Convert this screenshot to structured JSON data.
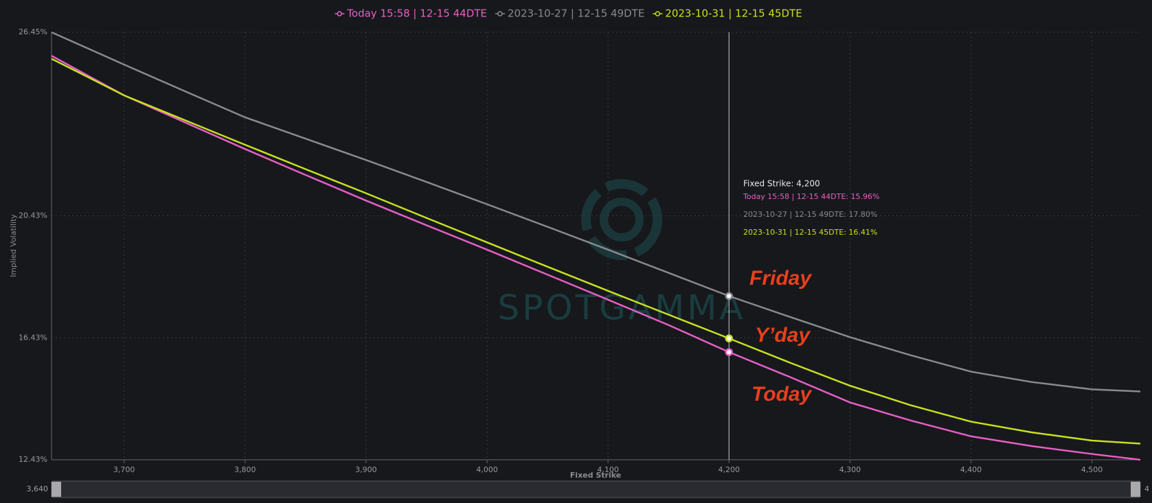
{
  "chart_data": {
    "type": "line",
    "x_label": "Fixed Strike",
    "y_label": "Implied Volatility",
    "x": [
      3640,
      3700,
      3750,
      3800,
      3850,
      3900,
      3950,
      4000,
      4050,
      4100,
      4150,
      4200,
      4250,
      4300,
      4350,
      4400,
      4450,
      4500,
      4540
    ],
    "series": [
      {
        "name": "Today 15:58 | 12-15 44DTE",
        "color": "#e65fc6",
        "values": [
          25.68,
          24.38,
          23.5,
          22.62,
          21.77,
          20.93,
          20.12,
          19.32,
          18.5,
          17.68,
          16.85,
          15.96,
          15.15,
          14.31,
          13.72,
          13.2,
          12.88,
          12.62,
          12.43
        ]
      },
      {
        "name": "2023-10-27 | 12-15 49DTE",
        "color": "#8a8a8e",
        "values": [
          26.45,
          25.39,
          24.52,
          23.66,
          22.96,
          22.26,
          21.54,
          20.81,
          20.07,
          19.32,
          18.56,
          17.8,
          17.12,
          16.45,
          15.86,
          15.32,
          14.98,
          14.74,
          14.67
        ]
      },
      {
        "name": "2023-10-31 | 12-15 45DTE",
        "color": "#c8e01e",
        "values": [
          25.58,
          24.38,
          23.57,
          22.76,
          21.96,
          21.17,
          20.36,
          19.56,
          18.76,
          17.97,
          17.19,
          16.41,
          15.62,
          14.86,
          14.22,
          13.68,
          13.33,
          13.06,
          12.96
        ]
      }
    ],
    "xlim": [
      3640,
      4540
    ],
    "xticks": [
      {
        "value": 3700,
        "label": "3,700"
      },
      {
        "value": 3800,
        "label": "3,800"
      },
      {
        "value": 3900,
        "label": "3,900"
      },
      {
        "value": 4000,
        "label": "4,000"
      },
      {
        "value": 4100,
        "label": "4,100"
      },
      {
        "value": 4200,
        "label": "4,200"
      },
      {
        "value": 4300,
        "label": "4,300"
      },
      {
        "value": 4400,
        "label": "4,400"
      },
      {
        "value": 4500,
        "label": "4,500"
      }
    ],
    "ylim": [
      12.43,
      26.45
    ],
    "yticks": [
      {
        "value": 12.43,
        "label": "12.43%"
      },
      {
        "value": 16.43,
        "label": "16.43%"
      },
      {
        "value": 20.43,
        "label": "20.43%"
      },
      {
        "value": 26.45,
        "label": "26.45%"
      }
    ],
    "grid": true,
    "legend": "top",
    "crosshair": {
      "x": 4200,
      "point_index": 11
    },
    "tooltip": {
      "title": "Fixed Strike: 4,200",
      "items": [
        "Today 15:58 | 12-15 44DTE: 15.96%",
        "2023-10-27 | 12-15 49DTE: 17.80%",
        "2023-10-31 | 12-15 45DTE: 16.41%"
      ]
    },
    "annotations": [
      "Friday",
      "Y’day",
      "Today"
    ],
    "watermark": "SPOTGAMMA",
    "range_slider": {
      "start_label": "3,640",
      "end_label": "4"
    }
  }
}
